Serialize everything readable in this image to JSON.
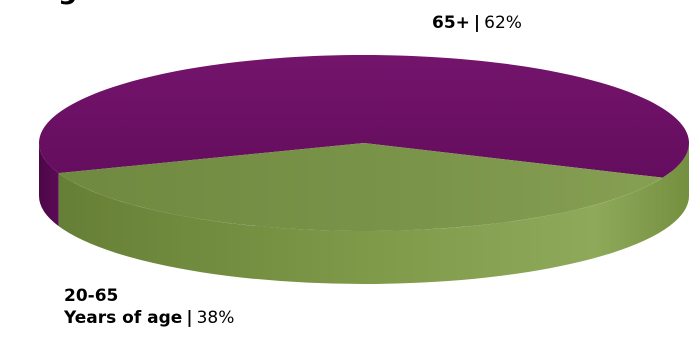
{
  "header": {
    "partial_title": "g"
  },
  "chart_data": {
    "type": "pie",
    "style": "3d",
    "slices": [
      {
        "label": "65+",
        "sublabel": "",
        "value": 62,
        "color": "#6b1064",
        "side_color": "#55084f"
      },
      {
        "label": "20-65",
        "sublabel": "Years of age",
        "value": 38,
        "color": "#79924a",
        "side_color": "#6e8a3e"
      }
    ],
    "labels": {
      "older": {
        "name": "65+",
        "separator": "|",
        "percent": "62%"
      },
      "younger": {
        "name": "20-65",
        "detail": "Years of age",
        "separator": "|",
        "percent": "38%"
      }
    },
    "legend": "none",
    "grid": false
  }
}
